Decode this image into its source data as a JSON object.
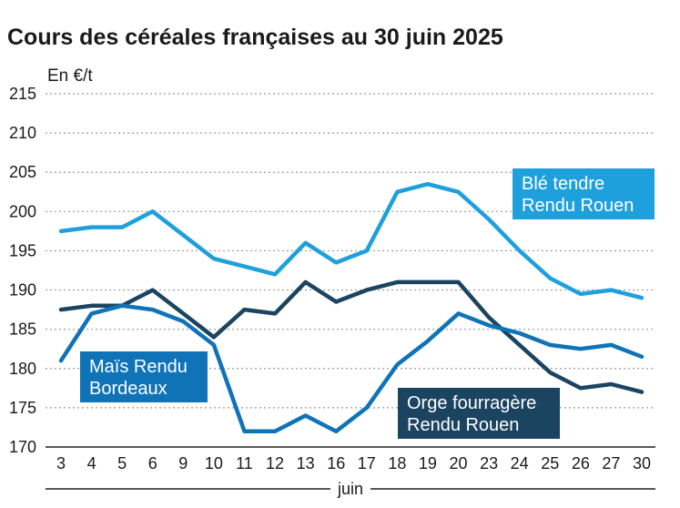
{
  "chart_data": {
    "type": "line",
    "title": "Cours des céréales françaises au 30 juin 2025",
    "ylabel": "En €/t",
    "xlabel": "juin",
    "ylim": [
      170,
      215
    ],
    "yticks": [
      "170",
      "175",
      "180",
      "185",
      "190",
      "195",
      "200",
      "205",
      "210",
      "215"
    ],
    "categories": [
      "3",
      "4",
      "5",
      "6",
      "9",
      "10",
      "11",
      "12",
      "13",
      "16",
      "17",
      "18",
      "19",
      "20",
      "23",
      "24",
      "25",
      "26",
      "27",
      "30"
    ],
    "series": [
      {
        "name": "Blé tendre Rendu Rouen",
        "label_lines": [
          "Blé tendre",
          "Rendu Rouen"
        ],
        "color": "#1ea0dc",
        "label_bg": "#1ea0dc",
        "values": [
          197.5,
          198,
          198,
          200,
          197,
          194,
          193,
          192,
          196,
          193.5,
          195,
          202.5,
          203.5,
          202.5,
          199,
          195,
          191.5,
          189.5,
          190,
          189
        ]
      },
      {
        "name": "Orge fourragère Rendu Rouen",
        "label_lines": [
          "Orge fourragère",
          "Rendu Rouen"
        ],
        "color": "#1b4461",
        "label_bg": "#1b4461",
        "values": [
          187.5,
          188,
          188,
          190,
          187,
          184,
          187.5,
          187,
          191,
          188.5,
          190,
          191,
          191,
          191,
          186.5,
          183,
          179.5,
          177.5,
          178,
          177
        ]
      },
      {
        "name": "Maïs Rendu Bordeaux",
        "label_lines": [
          "Maïs Rendu",
          "Bordeaux"
        ],
        "color": "#0f73b8",
        "label_bg": "#0f73b8",
        "values": [
          181,
          187,
          188,
          187.5,
          186,
          183,
          172,
          172,
          174,
          172,
          175,
          180.5,
          183.5,
          187,
          185.5,
          184.5,
          183,
          182.5,
          183,
          181.5
        ]
      }
    ]
  }
}
